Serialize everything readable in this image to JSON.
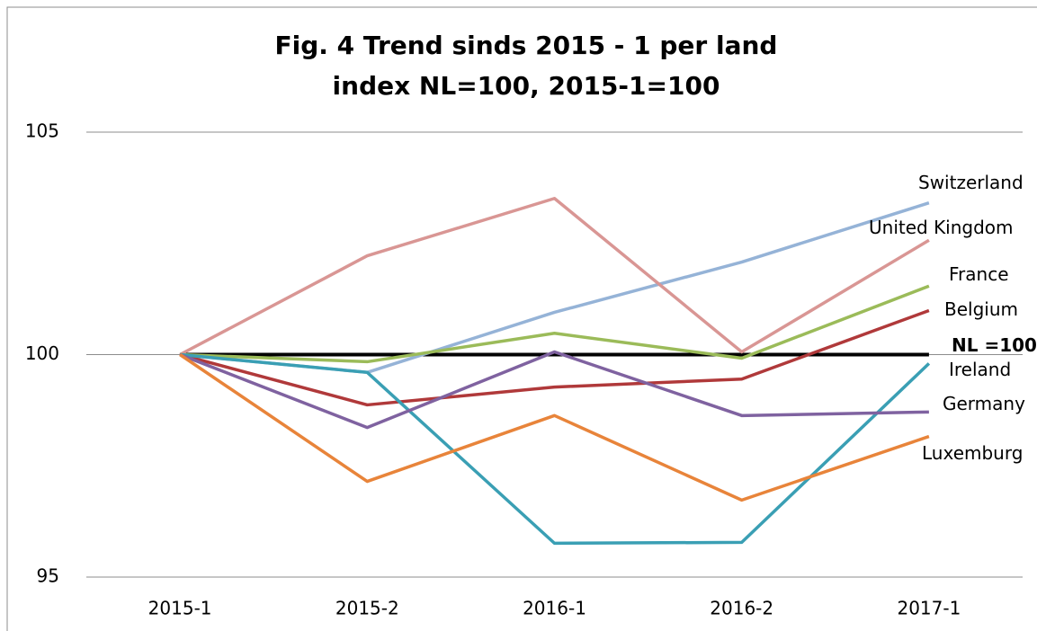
{
  "chart_data": {
    "type": "line",
    "title": "Fig. 4  Trend sinds 2015 - 1 per land",
    "subtitle": "index NL=100, 2015-1=100",
    "categories": [
      "2015-1",
      "2015-2",
      "2016-1",
      "2016-2",
      "2017-1"
    ],
    "ylim": [
      95,
      105
    ],
    "yticks": [
      95,
      100,
      105
    ],
    "grid": true,
    "series": [
      {
        "name": "NL =100",
        "color": "#000000",
        "values": [
          100,
          100,
          100,
          100,
          100
        ]
      },
      {
        "name": "Switzerland",
        "color": "#95b3d7",
        "values": [
          100,
          99.6,
          100.95,
          102.08,
          103.41
        ]
      },
      {
        "name": "United Kingdom",
        "color": "#d99694",
        "values": [
          100,
          102.22,
          103.51,
          100.06,
          102.57
        ]
      },
      {
        "name": "France",
        "color": "#9bbb59",
        "values": [
          100,
          99.84,
          100.48,
          99.92,
          101.54
        ]
      },
      {
        "name": "Belgium",
        "color": "#b0393a",
        "values": [
          100,
          98.87,
          99.27,
          99.45,
          100.99
        ]
      },
      {
        "name": "Ireland",
        "color": "#3a9fb4",
        "values": [
          100,
          99.6,
          95.76,
          95.78,
          99.8
        ]
      },
      {
        "name": "Germany",
        "color": "#7f62a0",
        "values": [
          100,
          98.36,
          100.06,
          98.63,
          98.71
        ]
      },
      {
        "name": "Luxemburg",
        "color": "#e8843a",
        "values": [
          100,
          97.15,
          98.63,
          96.73,
          98.16
        ]
      }
    ]
  }
}
